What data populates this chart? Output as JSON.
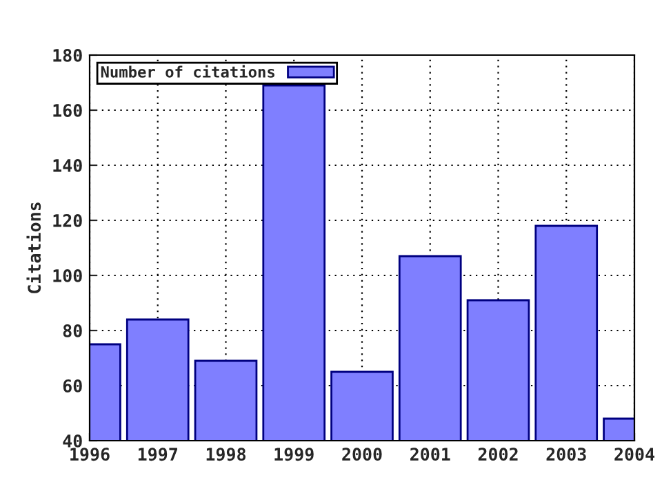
{
  "chart_data": {
    "type": "bar",
    "ylabel": "Citations",
    "x": [
      1996,
      1997,
      1998,
      1999,
      2000,
      2001,
      2002,
      2003,
      2004
    ],
    "series": [
      {
        "name": "Number of citations",
        "color": "#7f7fff",
        "values": [
          75,
          84,
          69,
          169,
          65,
          107,
          91,
          118,
          48
        ]
      }
    ],
    "xlim": [
      1996,
      2004
    ],
    "xticks": [
      1996,
      1997,
      1998,
      1999,
      2000,
      2001,
      2002,
      2003,
      2004
    ],
    "ylim": [
      40,
      180
    ],
    "yticks": [
      40,
      60,
      80,
      100,
      120,
      140,
      160,
      180
    ],
    "grid": true,
    "legend": "top left"
  }
}
